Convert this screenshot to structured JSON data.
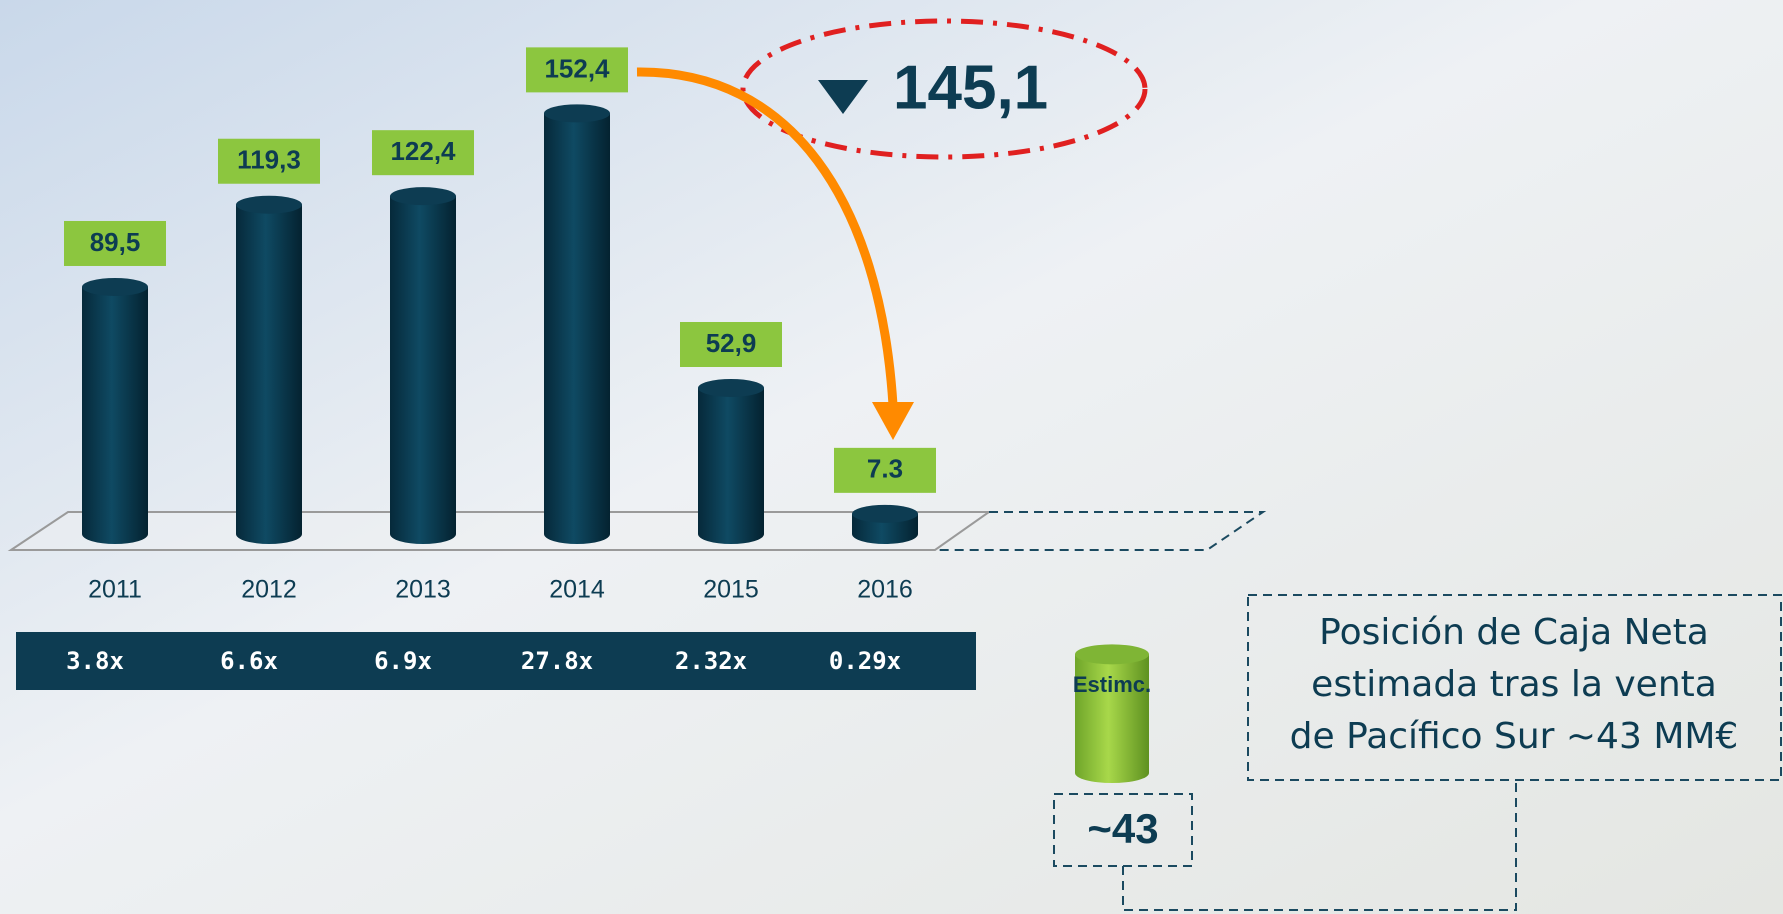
{
  "chart_data": {
    "type": "bar",
    "categories": [
      "2011",
      "2012",
      "2013",
      "2014",
      "2015",
      "2016"
    ],
    "values": [
      89.5,
      119.3,
      122.4,
      152.4,
      52.9,
      7.3
    ],
    "value_labels": [
      "89,5",
      "119,3",
      "122,4",
      "152,4",
      "52,9",
      "7.3"
    ],
    "multiples": [
      "3.8x",
      "6.6x",
      "6.9x",
      "27.8x",
      "2.32x",
      "0.29x"
    ],
    "color": "#0d3c52",
    "annotation": "145,1",
    "estimate": {
      "label": "Estimc.",
      "value": 43,
      "value_label": "~43",
      "color": "#8cc63f"
    },
    "note": [
      "Posición de Caja Neta",
      "estimada tras la venta",
      "de Pacífico Sur ~43 MM€"
    ]
  }
}
